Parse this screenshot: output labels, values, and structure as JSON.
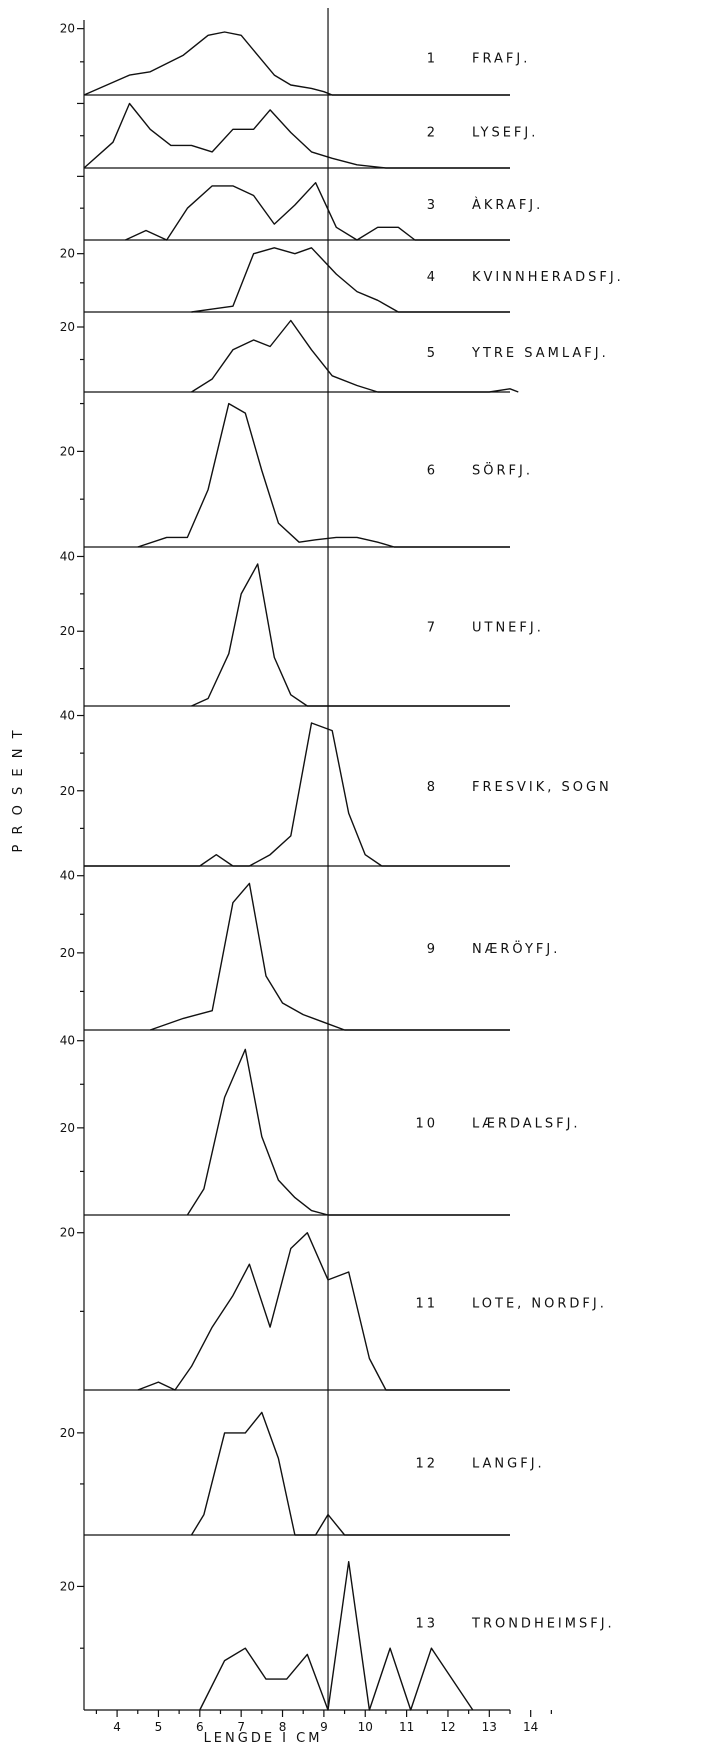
{
  "chart_data": {
    "type": "line",
    "ylabel": "P R O S E N T",
    "xlabel": "LENGDE I CM",
    "x_ticks": [
      4,
      5,
      6,
      7,
      8,
      9,
      10,
      11,
      12,
      13,
      14
    ],
    "reference_line_x": 9.1,
    "panels": [
      {
        "number": "1",
        "name": "FRAFJ.",
        "yticks": [
          "20"
        ],
        "ytick_values": [
          20
        ],
        "ymax": 22,
        "points": [
          [
            3.2,
            0
          ],
          [
            4.3,
            6
          ],
          [
            4.8,
            7
          ],
          [
            5.6,
            12
          ],
          [
            6.2,
            18
          ],
          [
            6.6,
            19
          ],
          [
            7.0,
            18
          ],
          [
            7.4,
            12
          ],
          [
            7.8,
            6
          ],
          [
            8.2,
            3
          ],
          [
            8.7,
            2
          ],
          [
            9.0,
            1
          ],
          [
            9.2,
            0
          ],
          [
            9.4,
            0
          ],
          [
            13.5,
            0
          ]
        ]
      },
      {
        "number": "2",
        "name": "LYSEFJ.",
        "yticks": [],
        "ytick_values": [],
        "ymax": 22,
        "points": [
          [
            3.2,
            0
          ],
          [
            3.9,
            8
          ],
          [
            4.3,
            20
          ],
          [
            4.8,
            12
          ],
          [
            5.3,
            7
          ],
          [
            5.8,
            7
          ],
          [
            6.3,
            5
          ],
          [
            6.8,
            12
          ],
          [
            7.3,
            12
          ],
          [
            7.7,
            18
          ],
          [
            8.2,
            11
          ],
          [
            8.7,
            5
          ],
          [
            9.2,
            3
          ],
          [
            9.8,
            1
          ],
          [
            10.5,
            0
          ],
          [
            11.5,
            0
          ],
          [
            13.5,
            0
          ]
        ]
      },
      {
        "number": "3",
        "name": "ÀKRAFJ.",
        "yticks": [],
        "ytick_values": [],
        "ymax": 22,
        "points": [
          [
            4.2,
            0
          ],
          [
            4.7,
            3
          ],
          [
            5.2,
            0
          ],
          [
            5.7,
            10
          ],
          [
            6.3,
            17
          ],
          [
            6.8,
            17
          ],
          [
            7.3,
            14
          ],
          [
            7.8,
            5
          ],
          [
            8.3,
            11
          ],
          [
            8.8,
            18
          ],
          [
            9.3,
            4
          ],
          [
            9.8,
            0
          ],
          [
            10.3,
            4
          ],
          [
            10.8,
            4
          ],
          [
            11.2,
            0
          ],
          [
            13.5,
            0
          ]
        ]
      },
      {
        "number": "4",
        "name": "KVINNHERADSFJ.",
        "yticks": [
          "20"
        ],
        "ytick_values": [
          20
        ],
        "ymax": 24,
        "points": [
          [
            5.8,
            0
          ],
          [
            6.3,
            1
          ],
          [
            6.8,
            2
          ],
          [
            7.3,
            20
          ],
          [
            7.8,
            22
          ],
          [
            8.3,
            20
          ],
          [
            8.7,
            22
          ],
          [
            9.3,
            13
          ],
          [
            9.8,
            7
          ],
          [
            10.3,
            4
          ],
          [
            10.8,
            0
          ],
          [
            13.5,
            0
          ]
        ]
      },
      {
        "number": "5",
        "name": "YTRE SAMLAFJ.",
        "yticks": [
          "20"
        ],
        "ytick_values": [
          20
        ],
        "ymax": 24,
        "points": [
          [
            5.8,
            0
          ],
          [
            6.3,
            4
          ],
          [
            6.8,
            13
          ],
          [
            7.3,
            16
          ],
          [
            7.7,
            14
          ],
          [
            8.2,
            22
          ],
          [
            8.7,
            13
          ],
          [
            9.2,
            5
          ],
          [
            9.8,
            2
          ],
          [
            10.3,
            0
          ],
          [
            13.0,
            0
          ],
          [
            13.5,
            1
          ],
          [
            13.7,
            0
          ]
        ]
      },
      {
        "number": "6",
        "name": "SÖRFJ.",
        "yticks": [
          "20"
        ],
        "ytick_values": [
          20
        ],
        "ymax": 32,
        "points": [
          [
            4.5,
            0
          ],
          [
            5.2,
            2
          ],
          [
            5.7,
            2
          ],
          [
            6.2,
            12
          ],
          [
            6.7,
            30
          ],
          [
            7.1,
            28
          ],
          [
            7.5,
            16
          ],
          [
            7.9,
            5
          ],
          [
            8.4,
            1
          ],
          [
            8.8,
            1.5
          ],
          [
            9.3,
            2
          ],
          [
            9.8,
            2
          ],
          [
            10.3,
            1
          ],
          [
            10.7,
            0
          ],
          [
            13.5,
            0
          ]
        ]
      },
      {
        "number": "7",
        "name": "UTNEFJ.",
        "yticks": [
          "40",
          "20"
        ],
        "ytick_values": [
          40,
          20
        ],
        "ymax": 42,
        "points": [
          [
            5.8,
            0
          ],
          [
            6.2,
            2
          ],
          [
            6.7,
            14
          ],
          [
            7.0,
            30
          ],
          [
            7.4,
            38
          ],
          [
            7.8,
            13
          ],
          [
            8.2,
            3
          ],
          [
            8.6,
            0
          ],
          [
            13.5,
            0
          ]
        ]
      },
      {
        "number": "8",
        "name": "FRESVIK, SOGN",
        "yticks": [
          "40",
          "20"
        ],
        "ytick_values": [
          40,
          20
        ],
        "ymax": 42,
        "points": [
          [
            3.2,
            0
          ],
          [
            6.0,
            0
          ],
          [
            6.4,
            3
          ],
          [
            6.8,
            0
          ],
          [
            7.2,
            0
          ],
          [
            7.7,
            3
          ],
          [
            8.2,
            8
          ],
          [
            8.7,
            38
          ],
          [
            9.2,
            36
          ],
          [
            9.6,
            14
          ],
          [
            10.0,
            3
          ],
          [
            10.4,
            0
          ],
          [
            13.5,
            0
          ]
        ]
      },
      {
        "number": "9",
        "name": "NÆRÖYFJ.",
        "yticks": [
          "40",
          "20"
        ],
        "ytick_values": [
          40,
          20
        ],
        "ymax": 42,
        "points": [
          [
            4.8,
            0
          ],
          [
            5.6,
            3
          ],
          [
            6.3,
            5
          ],
          [
            6.8,
            33
          ],
          [
            7.2,
            38
          ],
          [
            7.6,
            14
          ],
          [
            8.0,
            7
          ],
          [
            8.5,
            4
          ],
          [
            9.0,
            2
          ],
          [
            9.5,
            0
          ],
          [
            13.5,
            0
          ]
        ]
      },
      {
        "number": "10",
        "name": "LÆRDALSFJ.",
        "yticks": [
          "40",
          "20"
        ],
        "ytick_values": [
          40,
          20
        ],
        "ymax": 42,
        "points": [
          [
            5.7,
            0
          ],
          [
            6.1,
            6
          ],
          [
            6.6,
            27
          ],
          [
            7.1,
            38
          ],
          [
            7.5,
            18
          ],
          [
            7.9,
            8
          ],
          [
            8.3,
            4
          ],
          [
            8.7,
            1
          ],
          [
            9.1,
            0
          ],
          [
            13.5,
            0
          ]
        ]
      },
      {
        "number": "11",
        "name": "LOTE, NORDFJ.",
        "yticks": [
          "20"
        ],
        "ytick_values": [
          20
        ],
        "ymax": 22,
        "points": [
          [
            4.5,
            0
          ],
          [
            5.0,
            1
          ],
          [
            5.4,
            0
          ],
          [
            5.8,
            3
          ],
          [
            6.3,
            8
          ],
          [
            6.8,
            12
          ],
          [
            7.2,
            16
          ],
          [
            7.7,
            8
          ],
          [
            8.2,
            18
          ],
          [
            8.6,
            20
          ],
          [
            9.1,
            14
          ],
          [
            9.6,
            15
          ],
          [
            10.1,
            4
          ],
          [
            10.5,
            0
          ],
          [
            13.5,
            0
          ]
        ]
      },
      {
        "number": "12",
        "name": "LANGFJ.",
        "yticks": [
          "20"
        ],
        "ytick_values": [
          20
        ],
        "ymax": 28,
        "points": [
          [
            5.8,
            0
          ],
          [
            6.1,
            4
          ],
          [
            6.6,
            20
          ],
          [
            7.1,
            20
          ],
          [
            7.5,
            24
          ],
          [
            7.9,
            15
          ],
          [
            8.3,
            0
          ],
          [
            8.8,
            0
          ],
          [
            9.1,
            4
          ],
          [
            9.5,
            0
          ],
          [
            13.5,
            0
          ]
        ]
      },
      {
        "number": "13",
        "name": "TRONDHEIMSFJ.",
        "yticks": [
          "20"
        ],
        "ytick_values": [
          20
        ],
        "ymax": 28,
        "points": [
          [
            6.0,
            0
          ],
          [
            6.6,
            8
          ],
          [
            7.1,
            10
          ],
          [
            7.6,
            5
          ],
          [
            8.1,
            5
          ],
          [
            8.6,
            9
          ],
          [
            9.1,
            0
          ],
          [
            9.6,
            24
          ],
          [
            10.1,
            0
          ],
          [
            10.6,
            10
          ],
          [
            11.1,
            0
          ],
          [
            11.6,
            10
          ],
          [
            12.1,
            5
          ],
          [
            12.6,
            0
          ]
        ]
      }
    ]
  }
}
